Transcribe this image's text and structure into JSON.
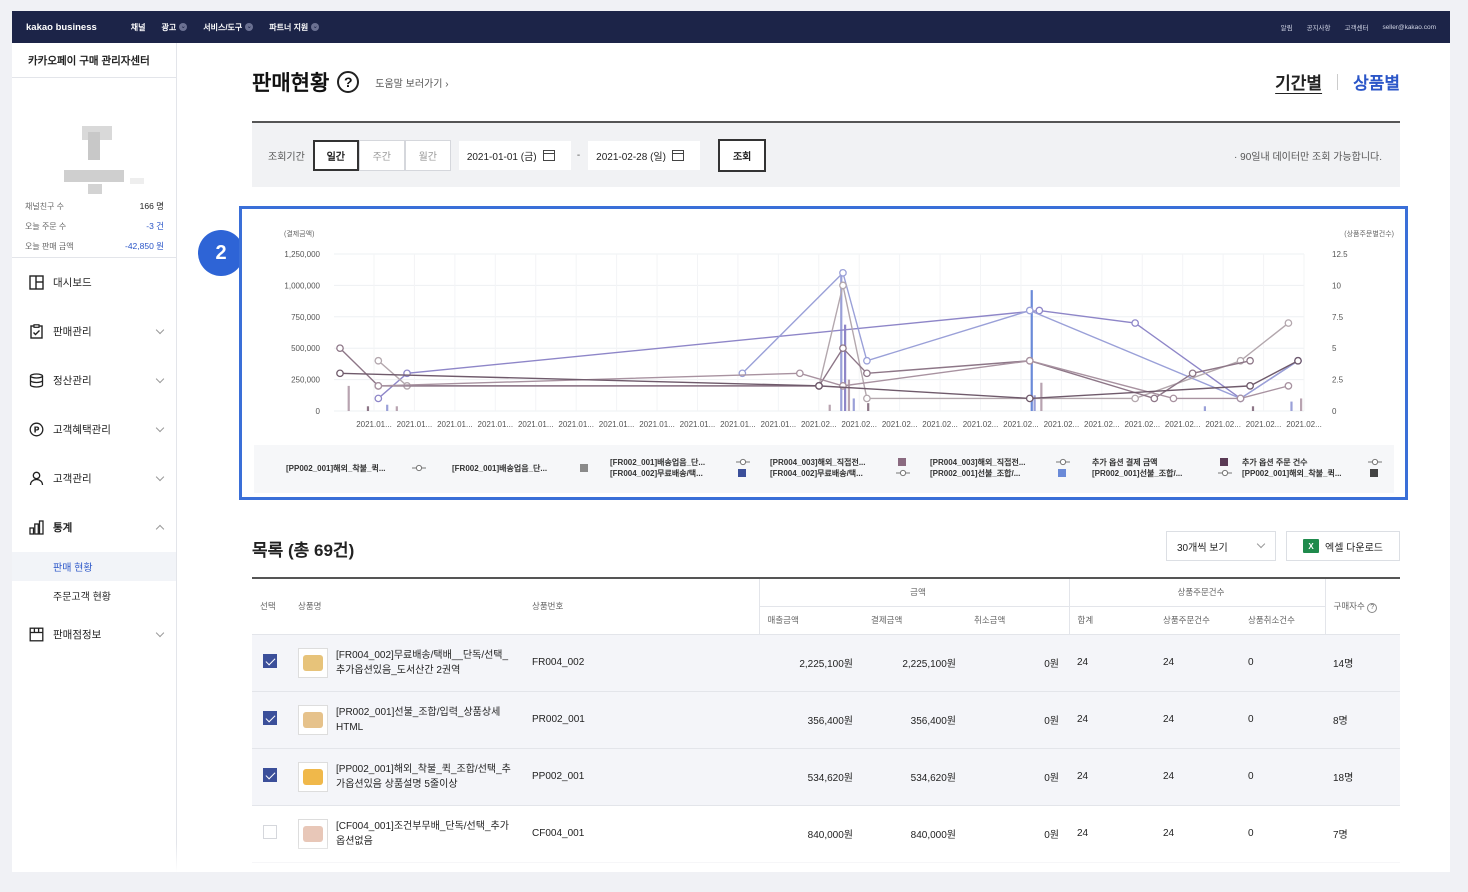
{
  "topnav": {
    "brand": "kakao business",
    "menu": [
      "채널",
      "광고",
      "서비스/도구",
      "파트너 지원"
    ],
    "util": [
      "알림",
      "공지사항",
      "고객센터",
      "seller@kakao.com"
    ]
  },
  "sidebar": {
    "center_title": "카카오페이 구매 관리자센터",
    "stats": [
      {
        "label": "채널친구 수",
        "value": "166 명"
      },
      {
        "label": "오늘 주문 수",
        "value": "-3 건"
      },
      {
        "label": "오늘 판매 금액",
        "value": "-42,850 원"
      }
    ],
    "items": [
      {
        "label": "대시보드",
        "icon": "dashboard-icon"
      },
      {
        "label": "판매관리",
        "icon": "clipboard-icon"
      },
      {
        "label": "정산관리",
        "icon": "database-icon"
      },
      {
        "label": "고객혜택관리",
        "icon": "points-icon"
      },
      {
        "label": "고객관리",
        "icon": "user-icon"
      },
      {
        "label": "통계",
        "icon": "bar-chart-icon"
      },
      {
        "label": "판매점정보",
        "icon": "store-icon"
      }
    ],
    "subitems": [
      "판매 현황",
      "주문고객 현황"
    ]
  },
  "page": {
    "title": "판매현황",
    "help": "?",
    "help_link": "도움말 보러가기",
    "tabs": [
      "기간별",
      "상품별"
    ]
  },
  "filter": {
    "label": "조회기간",
    "periods": [
      "일간",
      "주간",
      "월간"
    ],
    "start": "2021-01-01 (금)",
    "end": "2021-02-28 (일)",
    "sep": "-",
    "search": "조회",
    "notice": "· 90일내 데이터만 조회 가능합니다."
  },
  "marker": "2",
  "chart_data": {
    "type": "line",
    "ylabel_left": "(결제금액)",
    "ylabel_right": "(상품주문별건수)",
    "y_left_ticks": [
      "1,250,000",
      "1,000,000",
      "750,000",
      "500,000",
      "250,000",
      "0"
    ],
    "y_right_ticks": [
      "12.5",
      "10",
      "7.5",
      "5",
      "2.5",
      "0"
    ],
    "ylim_left": [
      0,
      1250000
    ],
    "ylim_right": [
      0,
      12.5
    ],
    "x_ticks": [
      "2021.01...",
      "2021.01...",
      "2021.01...",
      "2021.01...",
      "2021.01...",
      "2021.01...",
      "2021.01...",
      "2021.01...",
      "2021.01...",
      "2021.01...",
      "2021.01...",
      "2021.02...",
      "2021.02...",
      "2021.02...",
      "2021.02...",
      "2021.02...",
      "2021.02...",
      "2021.02...",
      "2021.02...",
      "2021.02...",
      "2021.02...",
      "2021.02...",
      "2021.02...",
      "2021.02..."
    ],
    "series": [
      {
        "color": "#8e86c8",
        "points": [
          [
            0.04,
            100000
          ],
          [
            0.07,
            300000
          ],
          [
            0.73,
            800000
          ],
          [
            0.83,
            700000
          ],
          [
            0.94,
            100000
          ],
          [
            1.0,
            400000
          ]
        ]
      },
      {
        "color": "#9aa0d8",
        "points": [
          [
            0.42,
            300000
          ],
          [
            0.525,
            1100000
          ],
          [
            0.55,
            400000
          ],
          [
            0.72,
            800000
          ],
          [
            0.94,
            100000
          ],
          [
            1.0,
            400000
          ]
        ]
      },
      {
        "color": "#b3a7ad",
        "points": [
          [
            0.04,
            400000
          ],
          [
            0.07,
            200000
          ],
          [
            0.5,
            200000
          ],
          [
            0.525,
            1000000
          ],
          [
            0.55,
            100000
          ],
          [
            0.83,
            100000
          ],
          [
            0.94,
            400000
          ],
          [
            0.99,
            700000
          ]
        ]
      },
      {
        "color": "#8d7687",
        "points": [
          [
            0.0,
            500000
          ],
          [
            0.04,
            200000
          ],
          [
            0.5,
            200000
          ],
          [
            0.525,
            500000
          ],
          [
            0.55,
            300000
          ],
          [
            0.72,
            400000
          ],
          [
            0.85,
            100000
          ],
          [
            0.89,
            300000
          ],
          [
            0.95,
            400000
          ]
        ]
      },
      {
        "color": "#a892a0",
        "points": [
          [
            0.04,
            200000
          ],
          [
            0.48,
            300000
          ],
          [
            0.525,
            200000
          ],
          [
            0.72,
            400000
          ],
          [
            0.87,
            100000
          ],
          [
            0.94,
            100000
          ],
          [
            0.99,
            200000
          ]
        ]
      },
      {
        "color": "#6f5a6b",
        "points": [
          [
            0.0,
            300000
          ],
          [
            0.5,
            200000
          ],
          [
            0.72,
            100000
          ],
          [
            0.95,
            200000
          ],
          [
            1.0,
            400000
          ]
        ]
      }
    ],
    "legend": [
      {
        "label": "[PP002_001]해외_착불_퀵...",
        "sym": "line"
      },
      {
        "label": "[FR002_001]배송업음_단...",
        "sym": "square",
        "color": "#8a8a8a"
      },
      {
        "label": "[FR002_001]배송업음_단...",
        "sym": "line",
        "label2": "[FR004_002]무료배송/택...",
        "sym2": "square",
        "color2": "#3b4f9a"
      },
      {
        "label": "[PR004_003]해외_직접전...",
        "sym": "square",
        "color": "#8a6a80",
        "label2": "[FR004_002]무료배송/택...",
        "sym2": "line"
      },
      {
        "label": "[PR004_003]해외_직접전...",
        "sym": "line",
        "label2": "[PR002_001]선불_조합/...",
        "sym2": "square",
        "color2": "#6a8ad8"
      },
      {
        "label": "추가 옵션 결제 금액",
        "sym": "square",
        "color": "#5a3a55",
        "label2": "[PR002_001]선불_조합/...",
        "sym2": "line"
      },
      {
        "label": "추가 옵션 주문 건수",
        "sym": "line",
        "label2": "[PP002_001]해외_착불_퀵...",
        "sym2": "square",
        "color2": "#444"
      }
    ]
  },
  "list": {
    "title": "목록 (총 69건)",
    "perpage": "30개씩 보기",
    "excel": "엑셀 다운로드",
    "headers": {
      "select": "선택",
      "name": "상품명",
      "code": "상품번호",
      "amount": "금액",
      "sales": "매출금액",
      "paid": "결제금액",
      "cancel": "취소금액",
      "orders": "상품주문건수",
      "total": "합계",
      "ordered": "상품주문건수",
      "cancelled": "상품취소건수",
      "buyers": "구매자수"
    },
    "rows": [
      {
        "checked": true,
        "name": "[FR004_002]무료배송/택배__단독/선택_추가옵션있음_도서산간 2권역",
        "code": "FR004_002",
        "sales": "2,225,100원",
        "paid": "2,225,100원",
        "cancel": "0원",
        "total": "24",
        "ordered": "24",
        "cancelled": "0",
        "buyers": "14명",
        "thumb": "#e7c37a"
      },
      {
        "checked": true,
        "name": "[PR002_001]선불_조합/입력_상품상세 HTML",
        "code": "PR002_001",
        "sales": "356,400원",
        "paid": "356,400원",
        "cancel": "0원",
        "total": "24",
        "ordered": "24",
        "cancelled": "0",
        "buyers": "8명",
        "thumb": "#e6c28b"
      },
      {
        "checked": true,
        "name": "[PP002_001]해외_착불_퀵_조합/선택_추가옵션있음 상품설명 5줄이상",
        "code": "PP002_001",
        "sales": "534,620원",
        "paid": "534,620원",
        "cancel": "0원",
        "total": "24",
        "ordered": "24",
        "cancelled": "0",
        "buyers": "18명",
        "thumb": "#f0b84a"
      },
      {
        "checked": false,
        "name": "[CF004_001]조건부무배_단독/선택_추가옵션없음",
        "code": "CF004_001",
        "sales": "840,000원",
        "paid": "840,000원",
        "cancel": "0원",
        "total": "24",
        "ordered": "24",
        "cancelled": "0",
        "buyers": "7명",
        "thumb": "#e8c7b8"
      }
    ]
  }
}
